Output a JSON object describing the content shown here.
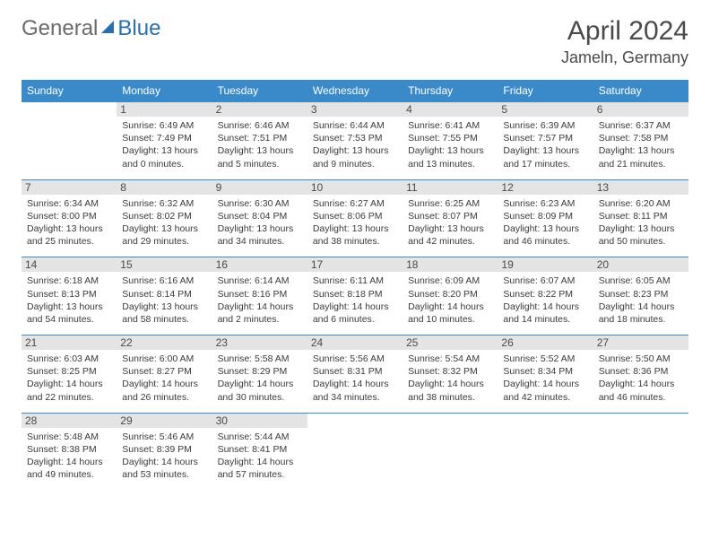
{
  "brand": {
    "part1": "General",
    "part2": "Blue"
  },
  "title": "April 2024",
  "location": "Jameln, Germany",
  "header_bg": "#3a8ac9",
  "header_fg": "#ffffff",
  "daynum_bg": "#e4e4e4",
  "border_color": "#3a8ac9",
  "weekdays": [
    "Sunday",
    "Monday",
    "Tuesday",
    "Wednesday",
    "Thursday",
    "Friday",
    "Saturday"
  ],
  "weeks": [
    [
      null,
      {
        "n": "1",
        "sunrise": "6:49 AM",
        "sunset": "7:49 PM",
        "daylight": "13 hours and 0 minutes."
      },
      {
        "n": "2",
        "sunrise": "6:46 AM",
        "sunset": "7:51 PM",
        "daylight": "13 hours and 5 minutes."
      },
      {
        "n": "3",
        "sunrise": "6:44 AM",
        "sunset": "7:53 PM",
        "daylight": "13 hours and 9 minutes."
      },
      {
        "n": "4",
        "sunrise": "6:41 AM",
        "sunset": "7:55 PM",
        "daylight": "13 hours and 13 minutes."
      },
      {
        "n": "5",
        "sunrise": "6:39 AM",
        "sunset": "7:57 PM",
        "daylight": "13 hours and 17 minutes."
      },
      {
        "n": "6",
        "sunrise": "6:37 AM",
        "sunset": "7:58 PM",
        "daylight": "13 hours and 21 minutes."
      }
    ],
    [
      {
        "n": "7",
        "sunrise": "6:34 AM",
        "sunset": "8:00 PM",
        "daylight": "13 hours and 25 minutes."
      },
      {
        "n": "8",
        "sunrise": "6:32 AM",
        "sunset": "8:02 PM",
        "daylight": "13 hours and 29 minutes."
      },
      {
        "n": "9",
        "sunrise": "6:30 AM",
        "sunset": "8:04 PM",
        "daylight": "13 hours and 34 minutes."
      },
      {
        "n": "10",
        "sunrise": "6:27 AM",
        "sunset": "8:06 PM",
        "daylight": "13 hours and 38 minutes."
      },
      {
        "n": "11",
        "sunrise": "6:25 AM",
        "sunset": "8:07 PM",
        "daylight": "13 hours and 42 minutes."
      },
      {
        "n": "12",
        "sunrise": "6:23 AM",
        "sunset": "8:09 PM",
        "daylight": "13 hours and 46 minutes."
      },
      {
        "n": "13",
        "sunrise": "6:20 AM",
        "sunset": "8:11 PM",
        "daylight": "13 hours and 50 minutes."
      }
    ],
    [
      {
        "n": "14",
        "sunrise": "6:18 AM",
        "sunset": "8:13 PM",
        "daylight": "13 hours and 54 minutes."
      },
      {
        "n": "15",
        "sunrise": "6:16 AM",
        "sunset": "8:14 PM",
        "daylight": "13 hours and 58 minutes."
      },
      {
        "n": "16",
        "sunrise": "6:14 AM",
        "sunset": "8:16 PM",
        "daylight": "14 hours and 2 minutes."
      },
      {
        "n": "17",
        "sunrise": "6:11 AM",
        "sunset": "8:18 PM",
        "daylight": "14 hours and 6 minutes."
      },
      {
        "n": "18",
        "sunrise": "6:09 AM",
        "sunset": "8:20 PM",
        "daylight": "14 hours and 10 minutes."
      },
      {
        "n": "19",
        "sunrise": "6:07 AM",
        "sunset": "8:22 PM",
        "daylight": "14 hours and 14 minutes."
      },
      {
        "n": "20",
        "sunrise": "6:05 AM",
        "sunset": "8:23 PM",
        "daylight": "14 hours and 18 minutes."
      }
    ],
    [
      {
        "n": "21",
        "sunrise": "6:03 AM",
        "sunset": "8:25 PM",
        "daylight": "14 hours and 22 minutes."
      },
      {
        "n": "22",
        "sunrise": "6:00 AM",
        "sunset": "8:27 PM",
        "daylight": "14 hours and 26 minutes."
      },
      {
        "n": "23",
        "sunrise": "5:58 AM",
        "sunset": "8:29 PM",
        "daylight": "14 hours and 30 minutes."
      },
      {
        "n": "24",
        "sunrise": "5:56 AM",
        "sunset": "8:31 PM",
        "daylight": "14 hours and 34 minutes."
      },
      {
        "n": "25",
        "sunrise": "5:54 AM",
        "sunset": "8:32 PM",
        "daylight": "14 hours and 38 minutes."
      },
      {
        "n": "26",
        "sunrise": "5:52 AM",
        "sunset": "8:34 PM",
        "daylight": "14 hours and 42 minutes."
      },
      {
        "n": "27",
        "sunrise": "5:50 AM",
        "sunset": "8:36 PM",
        "daylight": "14 hours and 46 minutes."
      }
    ],
    [
      {
        "n": "28",
        "sunrise": "5:48 AM",
        "sunset": "8:38 PM",
        "daylight": "14 hours and 49 minutes."
      },
      {
        "n": "29",
        "sunrise": "5:46 AM",
        "sunset": "8:39 PM",
        "daylight": "14 hours and 53 minutes."
      },
      {
        "n": "30",
        "sunrise": "5:44 AM",
        "sunset": "8:41 PM",
        "daylight": "14 hours and 57 minutes."
      },
      null,
      null,
      null,
      null
    ]
  ],
  "labels": {
    "sunrise": "Sunrise: ",
    "sunset": "Sunset: ",
    "daylight": "Daylight: "
  }
}
